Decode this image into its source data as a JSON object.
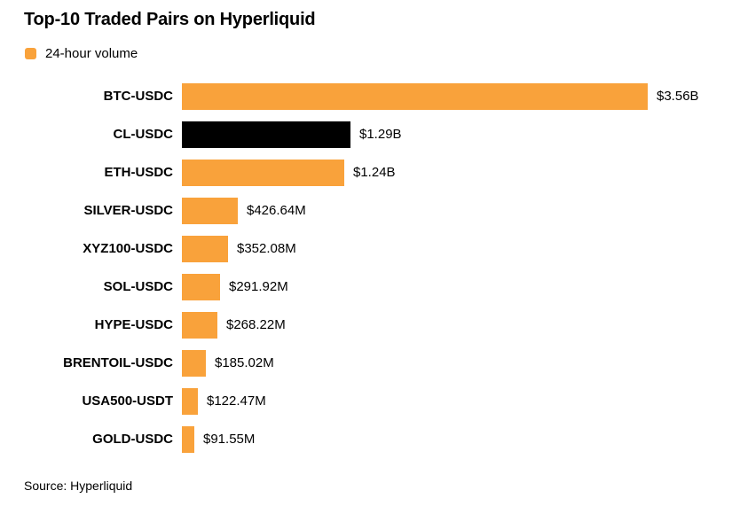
{
  "colors": {
    "accent_orange": "#F9A23B",
    "highlight_black": "#000000"
  },
  "chart_data": {
    "type": "bar",
    "orientation": "horizontal",
    "title": "Top-10 Traded Pairs on Hyperliquid",
    "legend": [
      "24-hour volume"
    ],
    "source": "Source: Hyperliquid",
    "categories": [
      "BTC-USDC",
      "CL-USDC",
      "ETH-USDC",
      "SILVER-USDC",
      "XYZ100-USDC",
      "SOL-USDC",
      "HYPE-USDC",
      "BRENTOIL-USDC",
      "USA500-USDT",
      "GOLD-USDC"
    ],
    "values_millions_usd": [
      3560,
      1290,
      1240,
      426.64,
      352.08,
      291.92,
      268.22,
      185.02,
      122.47,
      91.55
    ],
    "value_labels": [
      "$3.56B",
      "$1.29B",
      "$1.24B",
      "$426.64M",
      "$352.08M",
      "$291.92M",
      "$268.22M",
      "$185.02M",
      "$122.47M",
      "$91.55M"
    ],
    "bar_colors": [
      "#F9A23B",
      "#000000",
      "#F9A23B",
      "#F9A23B",
      "#F9A23B",
      "#F9A23B",
      "#F9A23B",
      "#F9A23B",
      "#F9A23B",
      "#F9A23B"
    ],
    "xlim_millions": [
      0,
      3560
    ],
    "grid": false,
    "legend_position": "top-left"
  }
}
